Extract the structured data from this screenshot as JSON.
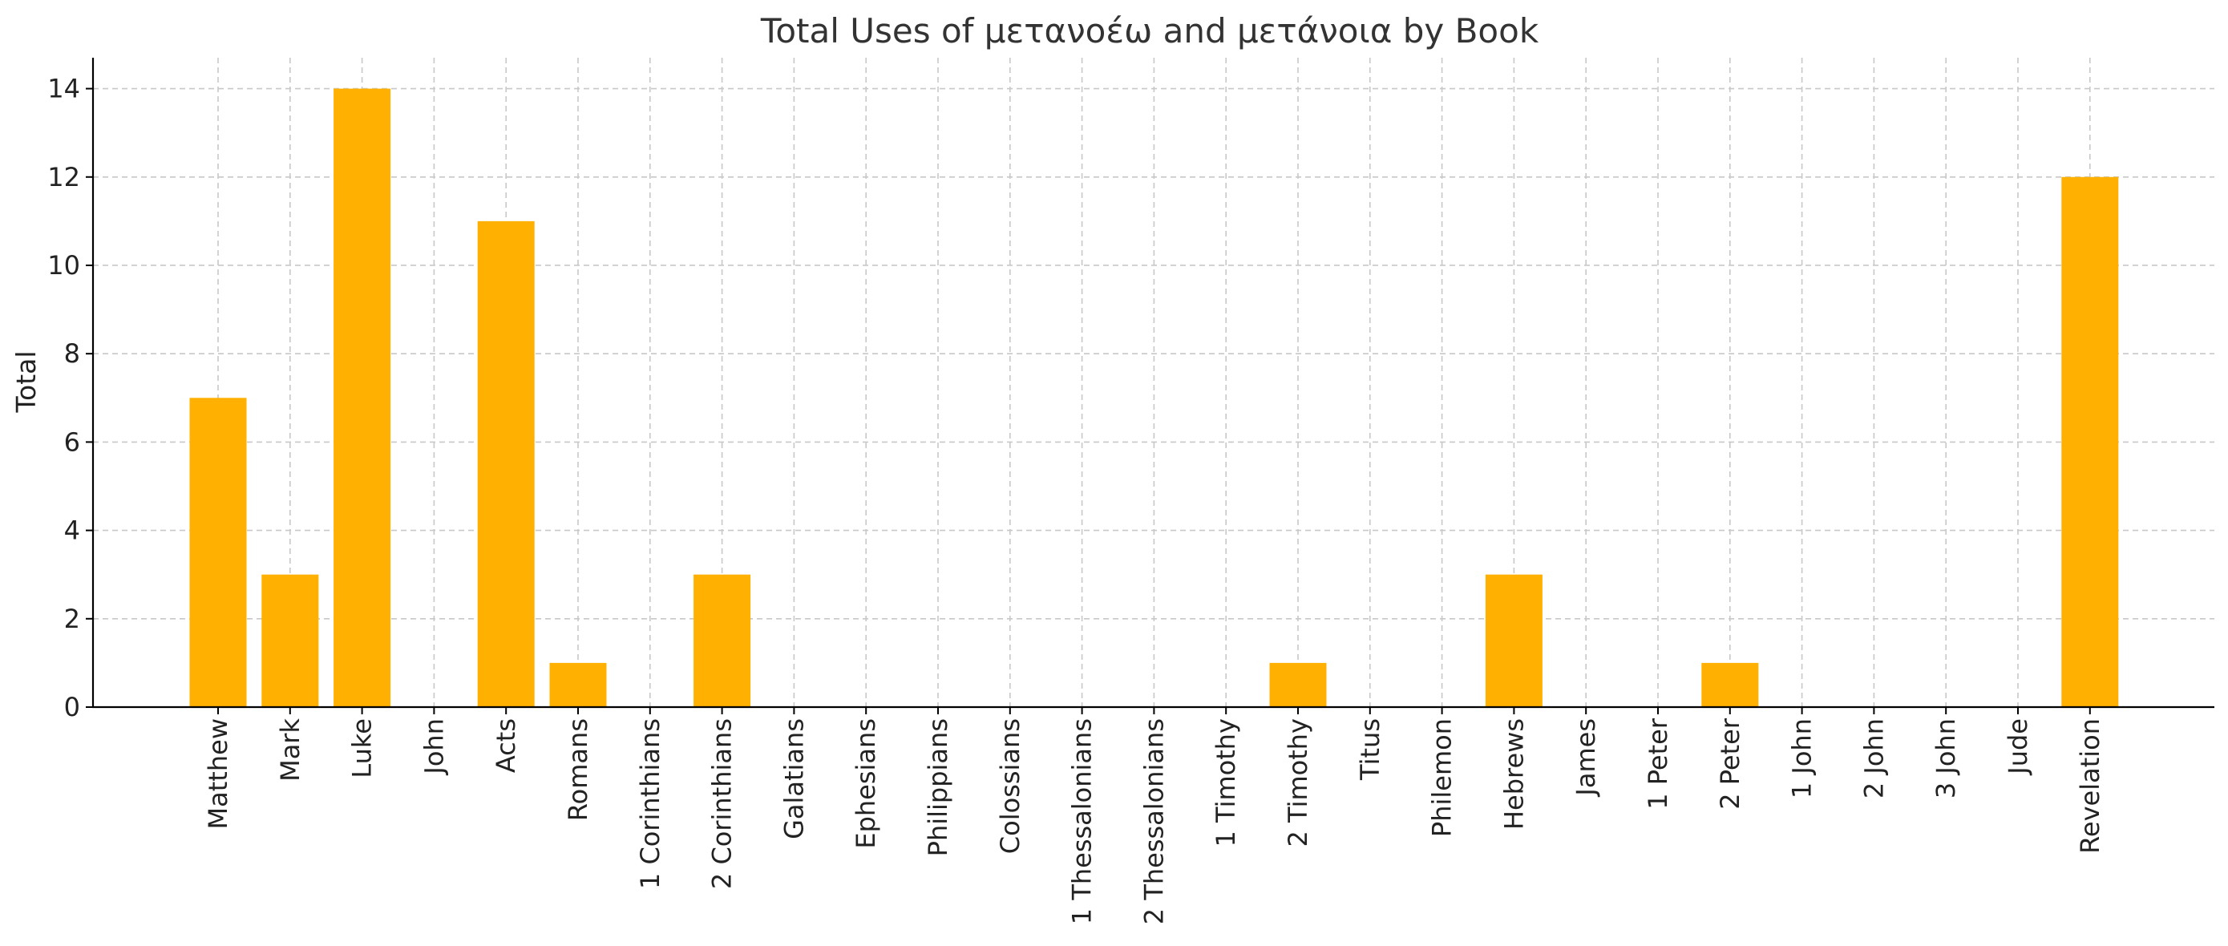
{
  "chart_data": {
    "type": "bar",
    "title": "Total Uses of μετανοέω and μετάνοια by Book",
    "xlabel": "",
    "ylabel": "Total",
    "categories": [
      "Matthew",
      "Mark",
      "Luke",
      "John",
      "Acts",
      "Romans",
      "1 Corinthians",
      "2 Corinthians",
      "Galatians",
      "Ephesians",
      "Philippians",
      "Colossians",
      "1 Thessalonians",
      "2 Thessalonians",
      "1 Timothy",
      "2 Timothy",
      "Titus",
      "Philemon",
      "Hebrews",
      "James",
      "1 Peter",
      "2 Peter",
      "1 John",
      "2 John",
      "3 John",
      "Jude",
      "Revelation"
    ],
    "values": [
      7,
      3,
      14,
      0,
      11,
      1,
      0,
      3,
      0,
      0,
      0,
      0,
      0,
      0,
      0,
      1,
      0,
      0,
      3,
      0,
      0,
      1,
      0,
      0,
      0,
      0,
      12
    ],
    "ylim": [
      0,
      14.7
    ],
    "yticks": [
      0,
      2,
      4,
      6,
      8,
      10,
      12,
      14
    ],
    "bar_color": "#FFB000",
    "grid": true,
    "legend": "none"
  }
}
